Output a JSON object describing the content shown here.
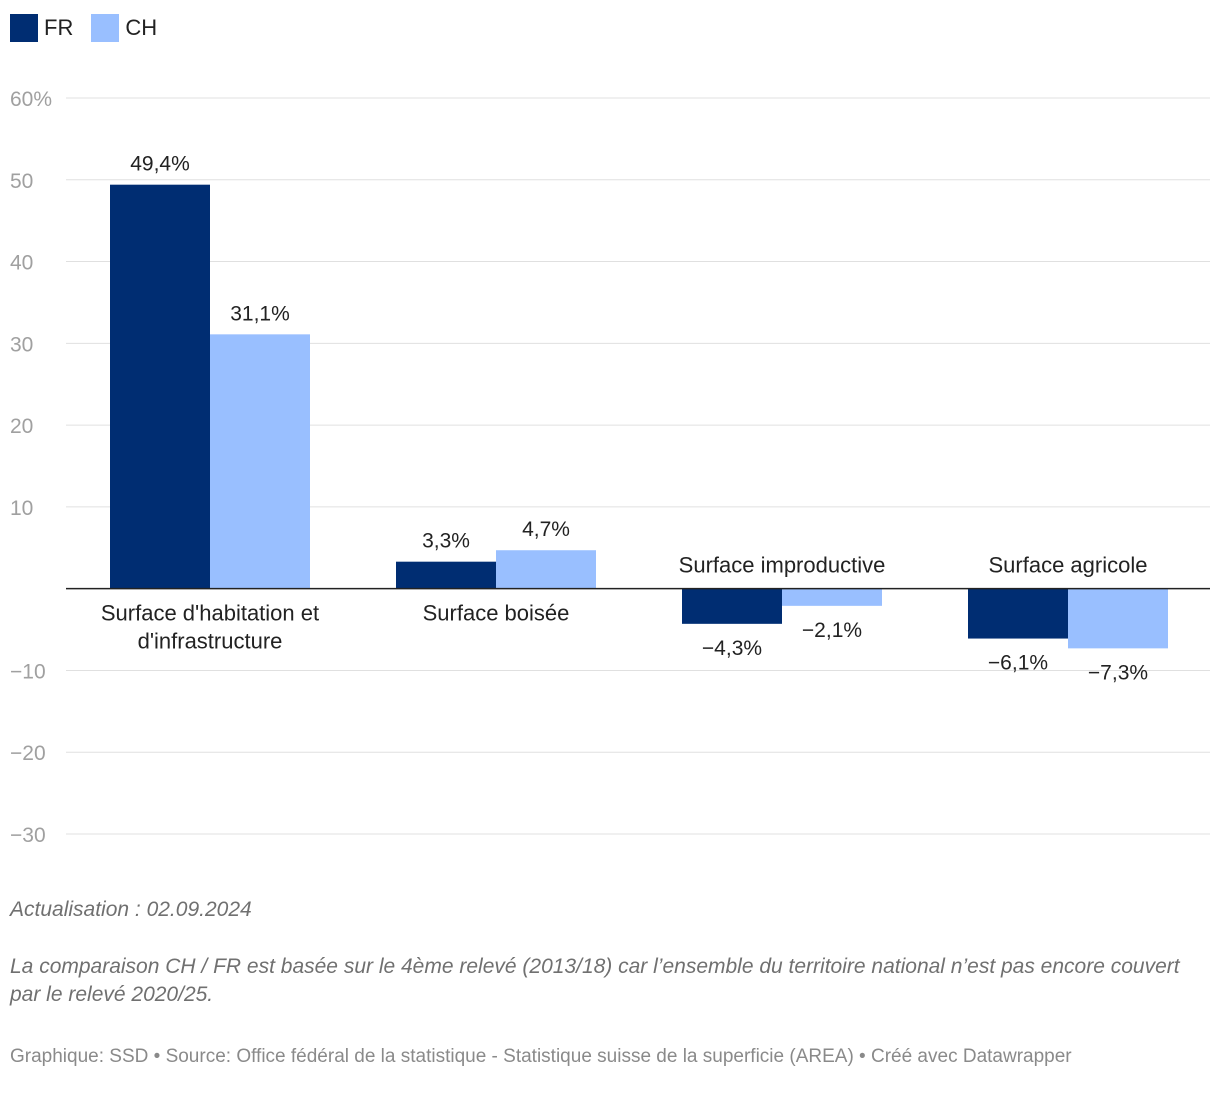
{
  "legend": {
    "items": [
      {
        "label": "FR",
        "color": "#002d72"
      },
      {
        "label": "CH",
        "color": "#99bfff"
      }
    ]
  },
  "chart_data": {
    "type": "bar",
    "categories": [
      [
        "Surface d'habitation et",
        "d'infrastructure"
      ],
      [
        "Surface boisée"
      ],
      [
        "Surface improductive"
      ],
      [
        "Surface agricole"
      ]
    ],
    "series": [
      {
        "name": "FR",
        "color": "#002d72",
        "values": [
          49.4,
          3.3,
          -4.3,
          -6.1
        ],
        "labels": [
          "49,4%",
          "3,3%",
          "−4,3%",
          "−6,1%"
        ]
      },
      {
        "name": "CH",
        "color": "#99bfff",
        "values": [
          31.1,
          4.7,
          -2.1,
          -7.3
        ],
        "labels": [
          "31,1%",
          "4,7%",
          "−2,1%",
          "−7,3%"
        ]
      }
    ],
    "yticks": [
      60,
      50,
      40,
      30,
      20,
      10,
      -10,
      -20,
      -30
    ],
    "ytick_labels": [
      "60%",
      "50",
      "40",
      "30",
      "20",
      "10",
      "−10",
      "−20",
      "−30"
    ],
    "ylim": [
      -30,
      60
    ],
    "xlabel": "",
    "ylabel": ""
  },
  "notes": {
    "update": "Actualisation : 02.09.2024",
    "comparison": "La comparaison CH / FR est basée sur le 4ème relevé (2013/18) car l’ensemble du territoire national n’est pas encore couvert par le relevé 2020/25."
  },
  "footer": "Graphique: SSD • Source: Office fédéral de la statistique - Statistique suisse de la superficie (AREA) • Créé avec Datawrapper"
}
